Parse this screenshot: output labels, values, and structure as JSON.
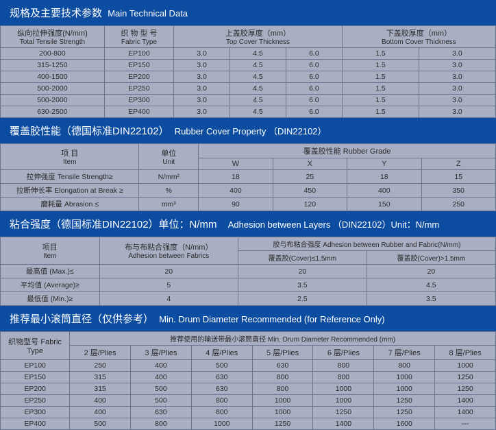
{
  "section1": {
    "title_cn": "规格及主要技术参数",
    "title_en": "Main Technical Data",
    "headers": {
      "tensile_cn": "纵向拉伸强度(N/mm)",
      "tensile_en": "Total Tensile Strength",
      "fabric_cn": "织 物  型 号",
      "fabric_en": "Fabric Type",
      "top_cn": "上盖胶厚度（mm）",
      "top_en": "Top Cover Thickness",
      "bottom_cn": "下盖胶厚度（mm）",
      "bottom_en": "Bottom Cover Thickness"
    },
    "rows": [
      {
        "tensile": "200-800",
        "fabric": "EP100",
        "t1": "3.0",
        "t2": "4.5",
        "t3": "6.0",
        "b1": "1.5",
        "b2": "3.0"
      },
      {
        "tensile": "315-1250",
        "fabric": "EP150",
        "t1": "3.0",
        "t2": "4.5",
        "t3": "6.0",
        "b1": "1.5",
        "b2": "3.0"
      },
      {
        "tensile": "400-1500",
        "fabric": "EP200",
        "t1": "3.0",
        "t2": "4.5",
        "t3": "6.0",
        "b1": "1.5",
        "b2": "3.0"
      },
      {
        "tensile": "500-2000",
        "fabric": "EP250",
        "t1": "3.0",
        "t2": "4.5",
        "t3": "6.0",
        "b1": "1.5",
        "b2": "3.0"
      },
      {
        "tensile": "500-2000",
        "fabric": "EP300",
        "t1": "3.0",
        "t2": "4.5",
        "t3": "6.0",
        "b1": "1.5",
        "b2": "3.0"
      },
      {
        "tensile": "630-2500",
        "fabric": "EP400",
        "t1": "3.0",
        "t2": "4.5",
        "t3": "6.0",
        "b1": "1.5",
        "b2": "3.0"
      }
    ]
  },
  "section2": {
    "title_cn": "覆盖胶性能（德国标准DIN22102）",
    "title_en": "Rubber Cover Property （DIN22102）",
    "headers": {
      "item_cn": "项 目",
      "item_en": "Item",
      "unit_cn": "单位",
      "unit_en": "Unit",
      "grade_cn": "覆盖胶性能  Rubber  Grade",
      "w": "W",
      "x": "X",
      "y": "Y",
      "z": "Z"
    },
    "rows": [
      {
        "item": "拉伸强度 Tensile Strength≥",
        "unit": "N/mm²",
        "w": "18",
        "x": "25",
        "y": "18",
        "z": "15"
      },
      {
        "item": "拉断伸长率 Elongation at Break ≥",
        "unit": "%",
        "w": "400",
        "x": "450",
        "y": "400",
        "z": "350"
      },
      {
        "item": "磨耗量 Abrasion ≤",
        "unit": "mm³",
        "w": "90",
        "x": "120",
        "y": "150",
        "z": "250"
      }
    ]
  },
  "section3": {
    "title_cn": "粘合强度（德国标准DIN22102）单位：N/mm",
    "title_en": "Adhesion between Layers （DIN22102）Unit：N/mm",
    "headers": {
      "item_cn": "项目",
      "item_en": "Item",
      "fab_cn": "布与布粘合强度（N/mm）",
      "fab_en": "Adhesion between Fabrics",
      "rub": "胶与布粘合强度 Adhesion between Rubber and Fabric(N/mm)",
      "cov1": "覆盖胶(Cover)≤1.5mm",
      "cov2": "覆盖胶(Cover)>1.5mm"
    },
    "rows": [
      {
        "item": "最高值 (Max.)≤",
        "fab": "20",
        "c1": "20",
        "c2": "20"
      },
      {
        "item": "平均值 (Average)≥",
        "fab": "5",
        "c1": "3.5",
        "c2": "4.5"
      },
      {
        "item": "最低值 (Min.)≥",
        "fab": "4",
        "c1": "2.5",
        "c2": "3.5"
      }
    ]
  },
  "section4": {
    "title_cn": "推荐最小滚筒直径（仅供参考）",
    "title_en": "Min. Drum Diameter Recommended (for Reference Only)",
    "headers": {
      "fabric_cn": "织物型号 Fabric Type",
      "sub_cn": "推荐使用的输送带最小滚筒直径    Min. Drum Diameter Recommended (mm)",
      "p2": "2 层/Plies",
      "p3": "3 层/Plies",
      "p4": "4 层/Plies",
      "p5": "5 层/Plies",
      "p6": "6 层/Plies",
      "p7": "7 层/Plies",
      "p8": "8 层/Plies"
    },
    "rows": [
      {
        "f": "EP100",
        "p2": "250",
        "p3": "400",
        "p4": "500",
        "p5": "630",
        "p6": "800",
        "p7": "800",
        "p8": "1000"
      },
      {
        "f": "EP150",
        "p2": "315",
        "p3": "400",
        "p4": "630",
        "p5": "800",
        "p6": "800",
        "p7": "1000",
        "p8": "1250"
      },
      {
        "f": "EP200",
        "p2": "315",
        "p3": "500",
        "p4": "630",
        "p5": "800",
        "p6": "1000",
        "p7": "1000",
        "p8": "1250"
      },
      {
        "f": "EP250",
        "p2": "400",
        "p3": "500",
        "p4": "800",
        "p5": "1000",
        "p6": "1000",
        "p7": "1250",
        "p8": "1400"
      },
      {
        "f": "EP300",
        "p2": "400",
        "p3": "630",
        "p4": "800",
        "p5": "1000",
        "p6": "1250",
        "p7": "1250",
        "p8": "1400"
      },
      {
        "f": "EP400",
        "p2": "500",
        "p3": "800",
        "p4": "1000",
        "p5": "1250",
        "p6": "1400",
        "p7": "1600",
        "p8": "---"
      }
    ]
  }
}
